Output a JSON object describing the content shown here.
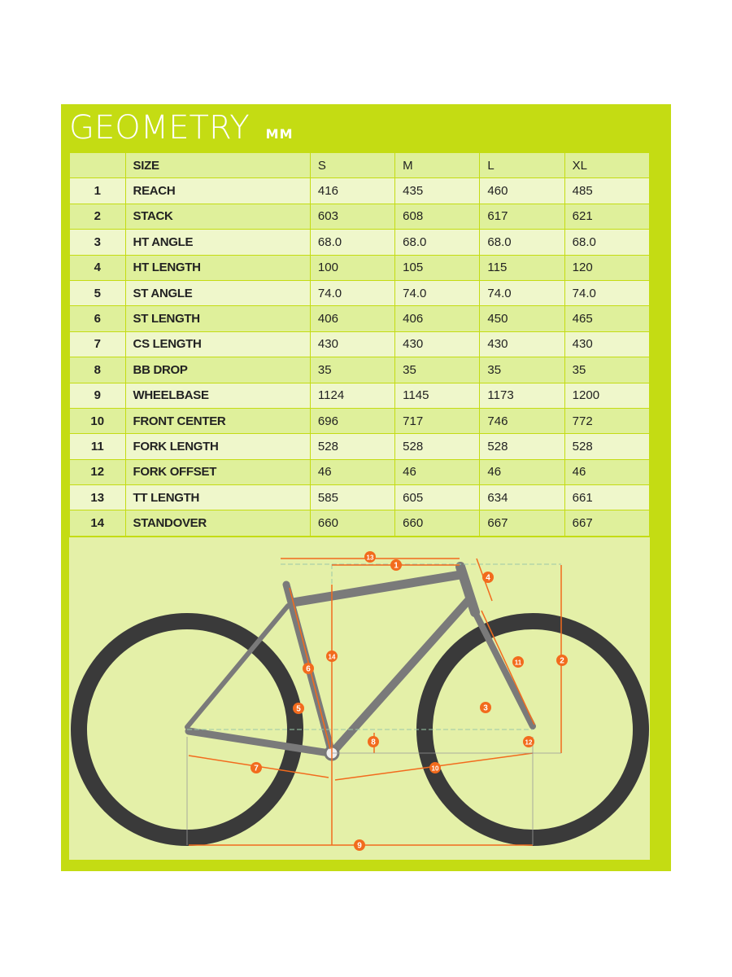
{
  "title": "GEOMETRY",
  "unit": "MM",
  "header": {
    "label": "SIZE",
    "sizes": [
      "S",
      "M",
      "L",
      "XL"
    ]
  },
  "rows": [
    {
      "n": "1",
      "label": "REACH",
      "v": [
        "416",
        "435",
        "460",
        "485"
      ]
    },
    {
      "n": "2",
      "label": "STACK",
      "v": [
        "603",
        "608",
        "617",
        "621"
      ]
    },
    {
      "n": "3",
      "label": "HT ANGLE",
      "v": [
        "68.0",
        "68.0",
        "68.0",
        "68.0"
      ]
    },
    {
      "n": "4",
      "label": "HT LENGTH",
      "v": [
        "100",
        "105",
        "115",
        "120"
      ]
    },
    {
      "n": "5",
      "label": "ST ANGLE",
      "v": [
        "74.0",
        "74.0",
        "74.0",
        "74.0"
      ]
    },
    {
      "n": "6",
      "label": "ST LENGTH",
      "v": [
        "406",
        "406",
        "450",
        "465"
      ]
    },
    {
      "n": "7",
      "label": "CS LENGTH",
      "v": [
        "430",
        "430",
        "430",
        "430"
      ]
    },
    {
      "n": "8",
      "label": "BB DROP",
      "v": [
        "35",
        "35",
        "35",
        "35"
      ]
    },
    {
      "n": "9",
      "label": "WHEELBASE",
      "v": [
        "1124",
        "1145",
        "1173",
        "1200"
      ]
    },
    {
      "n": "10",
      "label": "FRONT CENTER",
      "v": [
        "696",
        "717",
        "746",
        "772"
      ]
    },
    {
      "n": "11",
      "label": "FORK LENGTH",
      "v": [
        "528",
        "528",
        "528",
        "528"
      ]
    },
    {
      "n": "12",
      "label": "FORK OFFSET",
      "v": [
        "46",
        "46",
        "46",
        "46"
      ]
    },
    {
      "n": "13",
      "label": "TT LENGTH",
      "v": [
        "585",
        "605",
        "634",
        "661"
      ]
    },
    {
      "n": "14",
      "label": "STANDOVER",
      "v": [
        "660",
        "660",
        "667",
        "667"
      ]
    }
  ],
  "colors": {
    "background": "#c4dc13",
    "accent": "#f26b1d",
    "frame": "#6e6e6e",
    "tire": "#3a3a3a"
  },
  "diagram_markers": [
    "1",
    "2",
    "3",
    "4",
    "5",
    "6",
    "7",
    "8",
    "9",
    "10",
    "11",
    "12",
    "13",
    "14"
  ]
}
